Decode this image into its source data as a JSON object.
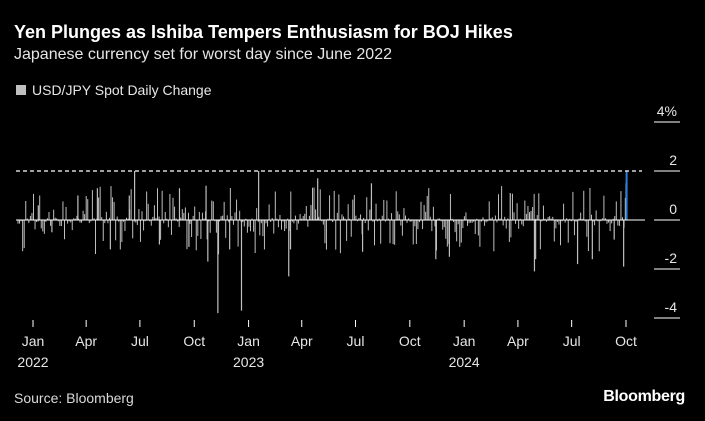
{
  "title": "Yen Plunges as Ishiba Tempers Enthusiasm for BOJ Hikes",
  "subtitle": "Japanese currency set for worst day since June 2022",
  "legend_label": "USD/JPY Spot Daily Change",
  "source": "Source: Bloomberg",
  "brand": "Bloomberg",
  "colors": {
    "bars": "#bfbfbf",
    "highlight": "#2a7fd4",
    "reference_line": "#ffffff",
    "background": "#000000"
  },
  "chart_data": {
    "type": "bar",
    "title": "Yen Plunges as Ishiba Tempers Enthusiasm for BOJ Hikes",
    "subtitle": "Japanese currency set for worst day since June 2022",
    "series": [
      {
        "name": "USD/JPY Spot Daily Change",
        "unit": "%"
      }
    ],
    "x_range": [
      "2022-01-01",
      "2024-10-02"
    ],
    "ylim": [
      -4,
      4
    ],
    "y_ticks": [
      {
        "value": 4,
        "label": "4%"
      },
      {
        "value": 2,
        "label": "2"
      },
      {
        "value": 0,
        "label": "0"
      },
      {
        "value": -2,
        "label": "-2"
      },
      {
        "value": -4,
        "label": "-4"
      }
    ],
    "x_ticks": [
      {
        "date": "2022-01-01",
        "month": "Jan",
        "year": "2022"
      },
      {
        "date": "2022-04-01",
        "month": "Apr",
        "year": ""
      },
      {
        "date": "2022-07-01",
        "month": "Jul",
        "year": ""
      },
      {
        "date": "2022-10-01",
        "month": "Oct",
        "year": ""
      },
      {
        "date": "2023-01-01",
        "month": "Jan",
        "year": "2023"
      },
      {
        "date": "2023-04-01",
        "month": "Apr",
        "year": ""
      },
      {
        "date": "2023-07-01",
        "month": "Jul",
        "year": ""
      },
      {
        "date": "2023-10-01",
        "month": "Oct",
        "year": ""
      },
      {
        "date": "2024-01-01",
        "month": "Jan",
        "year": "2024"
      },
      {
        "date": "2024-04-01",
        "month": "Apr",
        "year": ""
      },
      {
        "date": "2024-07-01",
        "month": "Jul",
        "year": ""
      },
      {
        "date": "2024-10-01",
        "month": "Oct",
        "year": ""
      }
    ],
    "reference_line": {
      "value": 2.0,
      "style": "dashed"
    },
    "points": [
      {
        "date": "2022-01-10",
        "value": 0.6
      },
      {
        "date": "2022-02-02",
        "value": -0.5
      },
      {
        "date": "2022-03-18",
        "value": 1.0
      },
      {
        "date": "2022-04-20",
        "value": 1.3
      },
      {
        "date": "2022-05-12",
        "value": -1.2
      },
      {
        "date": "2022-06-13",
        "value": 1.0
      },
      {
        "date": "2022-06-22",
        "value": 2.0
      },
      {
        "date": "2022-08-03",
        "value": -1.0
      },
      {
        "date": "2022-09-06",
        "value": 1.3
      },
      {
        "date": "2022-09-22",
        "value": -1.1
      },
      {
        "date": "2022-10-21",
        "value": 1.4
      },
      {
        "date": "2022-10-24",
        "value": -1.7
      },
      {
        "date": "2022-11-10",
        "value": -3.8
      },
      {
        "date": "2022-11-11",
        "value": -1.4
      },
      {
        "date": "2022-11-30",
        "value": -1.2
      },
      {
        "date": "2022-12-20",
        "value": -3.7
      },
      {
        "date": "2023-01-18",
        "value": 2.0
      },
      {
        "date": "2023-03-10",
        "value": -2.3
      },
      {
        "date": "2023-03-13",
        "value": -1.2
      },
      {
        "date": "2023-04-28",
        "value": 1.7
      },
      {
        "date": "2023-07-13",
        "value": -1.3
      },
      {
        "date": "2023-07-28",
        "value": 1.5
      },
      {
        "date": "2023-11-14",
        "value": -1.6
      },
      {
        "date": "2023-12-07",
        "value": -1.5
      },
      {
        "date": "2024-03-19",
        "value": 1.1
      },
      {
        "date": "2024-04-29",
        "value": -2.1
      },
      {
        "date": "2024-05-01",
        "value": -1.6
      },
      {
        "date": "2024-07-11",
        "value": -1.8
      },
      {
        "date": "2024-08-05",
        "value": -1.6
      },
      {
        "date": "2024-09-11",
        "value": -0.8
      },
      {
        "date": "2024-09-27",
        "value": -1.9
      },
      {
        "date": "2024-09-30",
        "value": 0.9
      },
      {
        "date": "2024-10-01",
        "value": 1.5
      },
      {
        "date": "2024-10-02",
        "value": 2.0,
        "highlight": true
      }
    ]
  }
}
